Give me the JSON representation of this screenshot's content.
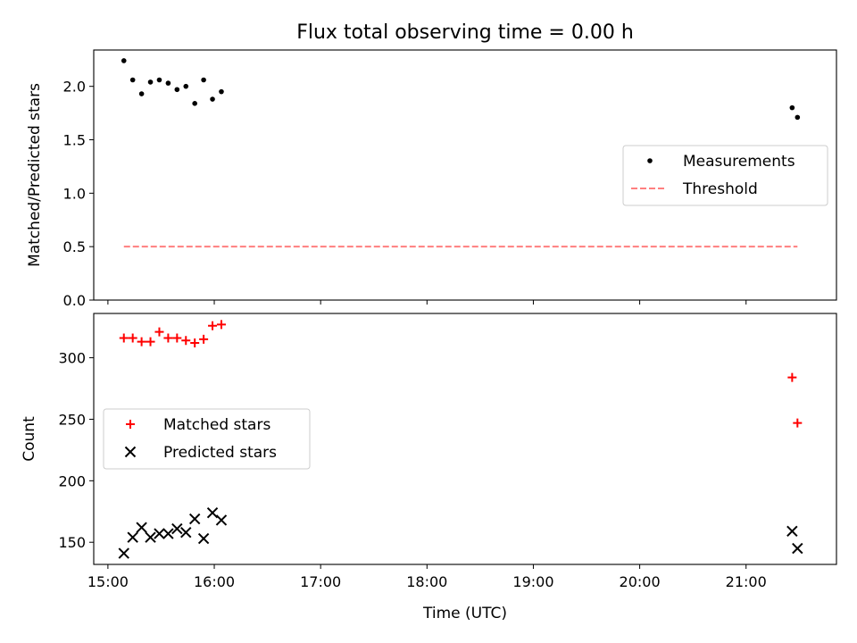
{
  "title": "Flux total observing time = 0.00 h",
  "xlabel": "Time (UTC)",
  "chart_data": [
    {
      "type": "scatter",
      "ylabel": "Matched/Predicted stars",
      "ylim": [
        0,
        2.34
      ],
      "yticks": [
        0.0,
        0.5,
        1.0,
        1.5,
        2.0
      ],
      "xlim": [
        "14:52",
        "21:51"
      ],
      "grid": false,
      "legend_placement": "center-right",
      "series": [
        {
          "name": "Measurements",
          "kind": "scatter",
          "marker": "dot",
          "color": "#000000",
          "x": [
            "15:09",
            "15:14",
            "15:19",
            "15:24",
            "15:29",
            "15:34",
            "15:39",
            "15:44",
            "15:49",
            "15:54",
            "15:59",
            "16:04",
            "21:26",
            "21:29"
          ],
          "y": [
            2.24,
            2.06,
            1.93,
            2.04,
            2.06,
            2.03,
            1.97,
            2.0,
            1.84,
            2.06,
            1.88,
            1.95,
            1.8,
            1.71
          ]
        },
        {
          "name": "Threshold",
          "kind": "line",
          "style": "dashed",
          "color": "#ff7f7f",
          "x": [
            "15:09",
            "21:29"
          ],
          "y": [
            0.5,
            0.5
          ]
        }
      ]
    },
    {
      "type": "scatter",
      "ylabel": "Count",
      "ylim": [
        132,
        336
      ],
      "yticks": [
        150,
        200,
        250,
        300
      ],
      "xlim": [
        "14:52",
        "21:51"
      ],
      "xticks": [
        "15:00",
        "16:00",
        "17:00",
        "18:00",
        "19:00",
        "20:00",
        "21:00"
      ],
      "grid": false,
      "legend_placement": "center-left",
      "series": [
        {
          "name": "Matched stars",
          "marker": "plus",
          "color": "#ff0000",
          "x": [
            "15:09",
            "15:14",
            "15:19",
            "15:24",
            "15:29",
            "15:34",
            "15:39",
            "15:44",
            "15:49",
            "15:54",
            "15:59",
            "16:04",
            "21:26",
            "21:29"
          ],
          "y": [
            316,
            316,
            313,
            313,
            321,
            316,
            316,
            314,
            312,
            315,
            326,
            327,
            284,
            247
          ]
        },
        {
          "name": "Predicted stars",
          "marker": "x",
          "color": "#000000",
          "x": [
            "15:09",
            "15:14",
            "15:19",
            "15:24",
            "15:29",
            "15:34",
            "15:39",
            "15:44",
            "15:49",
            "15:54",
            "15:59",
            "16:04",
            "21:26",
            "21:29"
          ],
          "y": [
            141,
            154,
            162,
            154,
            157,
            157,
            161,
            158,
            169,
            153,
            174,
            168,
            159,
            145
          ]
        }
      ]
    }
  ]
}
